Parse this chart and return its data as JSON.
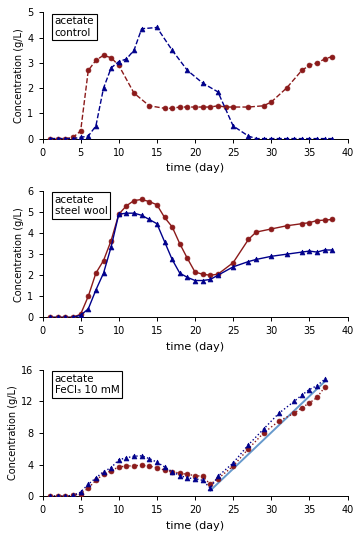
{
  "panel1": {
    "title": "acetate\ncontrol",
    "ylim": [
      0,
      5
    ],
    "yticks": [
      0,
      1,
      2,
      3,
      4,
      5
    ],
    "ytick_labels": [
      "0",
      "1",
      "2",
      "3",
      "4",
      "5"
    ],
    "xlim": [
      0,
      40
    ],
    "xticks": [
      0,
      5,
      10,
      15,
      20,
      25,
      30,
      35,
      40
    ],
    "series1": {
      "x": [
        1,
        2,
        3,
        4,
        5,
        6,
        7,
        8,
        9,
        10,
        12,
        14,
        16,
        17,
        18,
        19,
        20,
        21,
        22,
        23,
        24,
        25,
        27,
        29,
        30,
        32,
        34,
        35,
        36,
        37,
        38
      ],
      "y": [
        0,
        0,
        0,
        0.05,
        0.3,
        2.7,
        3.1,
        3.3,
        3.2,
        2.9,
        1.8,
        1.3,
        1.2,
        1.2,
        1.25,
        1.25,
        1.25,
        1.25,
        1.25,
        1.3,
        1.25,
        1.25,
        1.25,
        1.3,
        1.45,
        2.0,
        2.7,
        2.9,
        3.0,
        3.15,
        3.25
      ],
      "color": "#8B1A1A",
      "marker": "o",
      "linestyle": "--",
      "markersize": 3.5
    },
    "series2": {
      "x": [
        1,
        2,
        3,
        4,
        5,
        6,
        7,
        8,
        9,
        10,
        11,
        12,
        13,
        15,
        17,
        19,
        21,
        23,
        25,
        27,
        28,
        29,
        30,
        31,
        32,
        33,
        34,
        35,
        36,
        37,
        38
      ],
      "y": [
        0,
        0,
        0,
        0.0,
        0.05,
        0.1,
        0.5,
        2.0,
        2.8,
        3.05,
        3.15,
        3.5,
        4.35,
        4.4,
        3.5,
        2.7,
        2.2,
        1.85,
        0.5,
        0.1,
        0.0,
        0.0,
        0.0,
        0.0,
        0.0,
        0.0,
        0.0,
        0.0,
        0.0,
        0.0,
        0.0
      ],
      "color": "#00008B",
      "marker": "^",
      "linestyle": "--",
      "markersize": 3.5
    }
  },
  "panel2": {
    "title": "acetate\nsteel wool",
    "ylim": [
      0,
      6
    ],
    "yticks": [
      0,
      1,
      2,
      3,
      4,
      5,
      6
    ],
    "ytick_labels": [
      "0",
      "1",
      "2",
      "3",
      "4",
      "5",
      "6"
    ],
    "xlim": [
      0,
      40
    ],
    "xticks": [
      0,
      5,
      10,
      15,
      20,
      25,
      30,
      35,
      40
    ],
    "series1": {
      "x": [
        1,
        2,
        3,
        4,
        5,
        6,
        7,
        8,
        9,
        10,
        11,
        12,
        13,
        14,
        15,
        16,
        17,
        18,
        19,
        20,
        21,
        22,
        23,
        25,
        27,
        28,
        30,
        32,
        34,
        35,
        36,
        37,
        38
      ],
      "y": [
        0,
        0,
        0,
        0.0,
        0.15,
        1.0,
        2.1,
        2.7,
        3.65,
        4.9,
        5.3,
        5.55,
        5.6,
        5.5,
        5.35,
        4.75,
        4.3,
        3.5,
        2.8,
        2.15,
        2.05,
        2.0,
        2.05,
        2.6,
        3.7,
        4.05,
        4.2,
        4.35,
        4.45,
        4.5,
        4.6,
        4.62,
        4.65
      ],
      "color": "#8B1A1A",
      "marker": "o",
      "linestyle": "-",
      "markersize": 3.5
    },
    "series2": {
      "x": [
        1,
        2,
        3,
        4,
        5,
        6,
        7,
        8,
        9,
        10,
        11,
        12,
        13,
        14,
        15,
        16,
        17,
        18,
        19,
        20,
        21,
        22,
        23,
        25,
        27,
        28,
        30,
        32,
        34,
        35,
        36,
        37,
        38
      ],
      "y": [
        0,
        0,
        0,
        0.0,
        0.1,
        0.4,
        1.3,
        2.1,
        3.35,
        4.9,
        4.95,
        4.95,
        4.85,
        4.65,
        4.45,
        3.6,
        2.75,
        2.1,
        1.9,
        1.75,
        1.75,
        1.8,
        2.0,
        2.4,
        2.65,
        2.75,
        2.9,
        3.0,
        3.1,
        3.15,
        3.1,
        3.2,
        3.2
      ],
      "color": "#00008B",
      "marker": "^",
      "linestyle": "-",
      "markersize": 3.5
    }
  },
  "panel3": {
    "title": "acetate\nFeCl₃ 10 mM",
    "ylim": [
      0,
      16
    ],
    "yticks": [
      0,
      4,
      8,
      12,
      16
    ],
    "ytick_labels": [
      "0",
      "4",
      "8",
      "12",
      "16"
    ],
    "xlim": [
      0,
      40
    ],
    "xticks": [
      0,
      5,
      10,
      15,
      20,
      25,
      30,
      35,
      40
    ],
    "series1": {
      "x": [
        1,
        2,
        3,
        4,
        5,
        6,
        7,
        8,
        9,
        10,
        11,
        12,
        13,
        14,
        15,
        16,
        17,
        18,
        19,
        20,
        21,
        22,
        23,
        25,
        27,
        29,
        31,
        33,
        34,
        35,
        36,
        37
      ],
      "y": [
        0,
        0,
        0,
        0.1,
        0.3,
        1.0,
        2.0,
        2.8,
        3.2,
        3.7,
        3.8,
        3.85,
        3.9,
        3.8,
        3.6,
        3.3,
        3.1,
        2.9,
        2.75,
        2.6,
        2.5,
        1.5,
        2.2,
        3.8,
        6.0,
        8.0,
        9.5,
        10.5,
        11.2,
        11.8,
        12.5,
        13.8
      ],
      "color": "#8B1A1A",
      "marker": "o",
      "linestyle": ":",
      "markersize": 3.5
    },
    "series2": {
      "x": [
        1,
        2,
        3,
        4,
        5,
        6,
        7,
        8,
        9,
        10,
        11,
        12,
        13,
        14,
        15,
        16,
        17,
        18,
        19,
        20,
        21,
        22,
        23,
        25,
        27,
        29,
        31,
        33,
        34,
        35,
        36,
        37
      ],
      "y": [
        0,
        0,
        0,
        0.1,
        0.5,
        1.5,
        2.3,
        3.1,
        3.6,
        4.6,
        4.85,
        5.05,
        5.1,
        4.75,
        4.3,
        3.7,
        3.1,
        2.6,
        2.3,
        2.2,
        2.0,
        1.0,
        2.5,
        4.2,
        6.5,
        8.5,
        10.5,
        12.0,
        12.8,
        13.5,
        14.0,
        14.8
      ],
      "color": "#00008B",
      "marker": "^",
      "linestyle": ":",
      "markersize": 3.5
    },
    "trend_line": {
      "x": [
        22,
        37
      ],
      "y": [
        0.7,
        14.5
      ],
      "color": "#6699CC"
    }
  },
  "xlabel": "time (day)",
  "ylabel": "Concentration (g/L)",
  "linewidth": 1.0,
  "bg_color": "#FFFFFF"
}
